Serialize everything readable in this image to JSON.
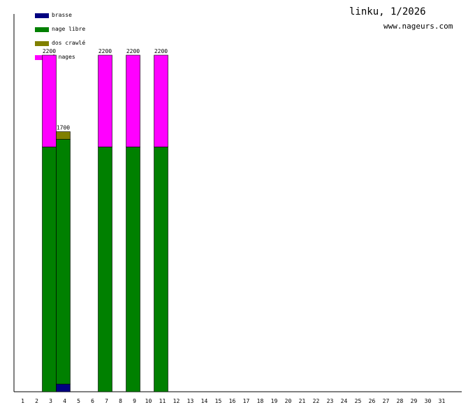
{
  "header": {
    "title": "linku, 1/2026",
    "site": "www.nageurs.com"
  },
  "chart_data": {
    "type": "bar",
    "stacked": true,
    "x": [
      "1",
      "2",
      "3",
      "4",
      "5",
      "6",
      "7",
      "8",
      "9",
      "10",
      "11",
      "12",
      "13",
      "14",
      "15",
      "16",
      "17",
      "18",
      "19",
      "20",
      "21",
      "22",
      "23",
      "24",
      "25",
      "26",
      "27",
      "28",
      "29",
      "30",
      "31"
    ],
    "series": [
      {
        "name": "brasse",
        "color": "#000080",
        "values": [
          0,
          0,
          0,
          50,
          0,
          0,
          0,
          0,
          0,
          0,
          0,
          0,
          0,
          0,
          0,
          0,
          0,
          0,
          0,
          0,
          0,
          0,
          0,
          0,
          0,
          0,
          0,
          0,
          0,
          0,
          0
        ]
      },
      {
        "name": "nage libre",
        "color": "#008000",
        "values": [
          0,
          0,
          1600,
          1600,
          0,
          0,
          1600,
          0,
          1600,
          0,
          1600,
          0,
          0,
          0,
          0,
          0,
          0,
          0,
          0,
          0,
          0,
          0,
          0,
          0,
          0,
          0,
          0,
          0,
          0,
          0,
          0
        ]
      },
      {
        "name": "dos crawlé",
        "color": "#808000",
        "values": [
          0,
          0,
          0,
          50,
          0,
          0,
          0,
          0,
          0,
          0,
          0,
          0,
          0,
          0,
          0,
          0,
          0,
          0,
          0,
          0,
          0,
          0,
          0,
          0,
          0,
          0,
          0,
          0,
          0,
          0,
          0
        ]
      },
      {
        "name": "4 nages",
        "color": "#ff00ff",
        "values": [
          0,
          0,
          600,
          0,
          0,
          0,
          600,
          0,
          600,
          0,
          600,
          0,
          0,
          0,
          0,
          0,
          0,
          0,
          0,
          0,
          0,
          0,
          0,
          0,
          0,
          0,
          0,
          0,
          0,
          0,
          0
        ]
      }
    ],
    "totals": [
      "",
      "",
      "2200",
      "1700",
      "",
      "",
      "2200",
      "",
      "2200",
      "",
      "2200",
      "",
      "",
      "",
      "",
      "",
      "",
      "",
      "",
      "",
      "",
      "",
      "",
      "",
      "",
      "",
      "",
      "",
      "",
      "",
      ""
    ],
    "ylim": [
      0,
      2200
    ],
    "grid": false,
    "legend_position": "top-left"
  }
}
